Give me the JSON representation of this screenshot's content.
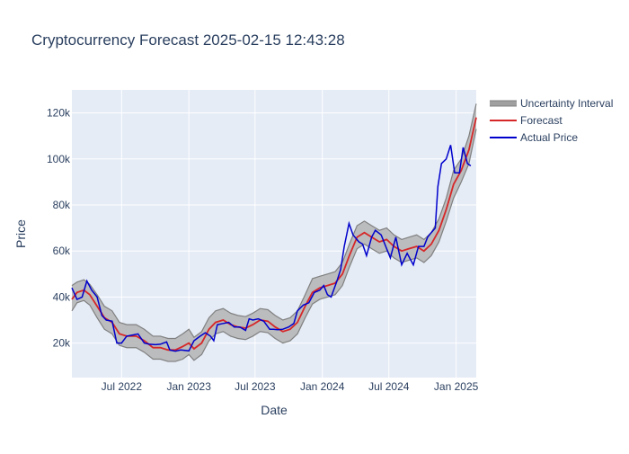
{
  "chart_data": {
    "type": "area",
    "title": "Cryptocurrency Forecast 2025-02-15 12:43:28",
    "xlabel": "Date",
    "ylabel": "Price",
    "x_range": [
      "2022-02-15",
      "2025-02-25"
    ],
    "ylim": [
      5000,
      130000
    ],
    "x_ticks": [
      {
        "date": "2022-07-01",
        "label": "Jul 2022"
      },
      {
        "date": "2023-01-01",
        "label": "Jan 2023"
      },
      {
        "date": "2023-07-01",
        "label": "Jul 2023"
      },
      {
        "date": "2024-01-01",
        "label": "Jan 2024"
      },
      {
        "date": "2024-07-01",
        "label": "Jul 2024"
      },
      {
        "date": "2025-01-01",
        "label": "Jan 2025"
      }
    ],
    "y_ticks": [
      {
        "value": 20000,
        "label": "20k"
      },
      {
        "value": 40000,
        "label": "40k"
      },
      {
        "value": 60000,
        "label": "60k"
      },
      {
        "value": 80000,
        "label": "80k"
      },
      {
        "value": 100000,
        "label": "100k"
      },
      {
        "value": 120000,
        "label": "120k"
      }
    ],
    "grid": true,
    "legend_position": "right",
    "legend": [
      "Uncertainty Interval",
      "Forecast",
      "Actual Price"
    ],
    "colors": {
      "plot_bg": "#e5ecf6",
      "grid": "#ffffff",
      "band_fill": "#b4b4b4",
      "band_line": "#808080",
      "forecast": "#d62728",
      "actual": "#0000cc",
      "text": "#2a3f5f"
    },
    "series": [
      {
        "name": "Forecast",
        "x": [
          "2022-02-15",
          "2022-03-01",
          "2022-03-20",
          "2022-04-05",
          "2022-04-25",
          "2022-05-15",
          "2022-06-05",
          "2022-06-25",
          "2022-07-15",
          "2022-08-10",
          "2022-09-01",
          "2022-09-25",
          "2022-10-15",
          "2022-11-05",
          "2022-11-25",
          "2022-12-15",
          "2023-01-01",
          "2023-01-15",
          "2023-02-05",
          "2023-02-25",
          "2023-03-15",
          "2023-04-05",
          "2023-04-25",
          "2023-05-15",
          "2023-06-05",
          "2023-06-25",
          "2023-07-15",
          "2023-08-05",
          "2023-08-25",
          "2023-09-15",
          "2023-10-05",
          "2023-10-25",
          "2023-11-15",
          "2023-12-05",
          "2023-12-25",
          "2024-01-15",
          "2024-02-05",
          "2024-02-25",
          "2024-03-15",
          "2024-04-05",
          "2024-04-25",
          "2024-05-15",
          "2024-06-05",
          "2024-06-25",
          "2024-07-15",
          "2024-08-05",
          "2024-08-25",
          "2024-09-15",
          "2024-10-05",
          "2024-10-25",
          "2024-11-15",
          "2024-12-05",
          "2024-12-25",
          "2025-01-15",
          "2025-02-05",
          "2025-02-25"
        ],
        "values": [
          39000,
          42000,
          43000,
          41000,
          36000,
          31000,
          29000,
          24000,
          23000,
          23000,
          21000,
          18000,
          18000,
          17000,
          17000,
          18500,
          20000,
          17500,
          20000,
          26000,
          29000,
          30000,
          28000,
          27000,
          26500,
          28000,
          30000,
          29500,
          27000,
          25000,
          26000,
          29000,
          36000,
          42000,
          44000,
          45000,
          46000,
          50000,
          58000,
          66000,
          68000,
          66000,
          64000,
          65000,
          62000,
          60000,
          61000,
          62000,
          60000,
          63000,
          69000,
          78000,
          89000,
          95000,
          104000,
          118000
        ]
      },
      {
        "name": "Uncertainty Interval",
        "x": [
          "2022-02-15",
          "2022-03-01",
          "2022-03-20",
          "2022-04-05",
          "2022-04-25",
          "2022-05-15",
          "2022-06-05",
          "2022-06-25",
          "2022-07-15",
          "2022-08-10",
          "2022-09-01",
          "2022-09-25",
          "2022-10-15",
          "2022-11-05",
          "2022-11-25",
          "2022-12-15",
          "2023-01-01",
          "2023-01-15",
          "2023-02-05",
          "2023-02-25",
          "2023-03-15",
          "2023-04-05",
          "2023-04-25",
          "2023-05-15",
          "2023-06-05",
          "2023-06-25",
          "2023-07-15",
          "2023-08-05",
          "2023-08-25",
          "2023-09-15",
          "2023-10-05",
          "2023-10-25",
          "2023-11-15",
          "2023-12-05",
          "2023-12-25",
          "2024-01-15",
          "2024-02-05",
          "2024-02-25",
          "2024-03-15",
          "2024-04-05",
          "2024-04-25",
          "2024-05-15",
          "2024-06-05",
          "2024-06-25",
          "2024-07-15",
          "2024-08-05",
          "2024-08-25",
          "2024-09-15",
          "2024-10-05",
          "2024-10-25",
          "2024-11-15",
          "2024-12-05",
          "2024-12-25",
          "2025-01-15",
          "2025-02-05",
          "2025-02-25"
        ],
        "upper": [
          45000,
          46500,
          47500,
          45500,
          41000,
          36000,
          34000,
          29000,
          28000,
          28000,
          26000,
          23000,
          23000,
          22000,
          22000,
          24000,
          26000,
          22500,
          25000,
          31000,
          34000,
          35000,
          33000,
          32000,
          31500,
          33000,
          35000,
          34500,
          32000,
          30000,
          31000,
          34000,
          41000,
          48000,
          49000,
          50000,
          51000,
          55000,
          63000,
          71000,
          73000,
          71000,
          69000,
          70000,
          67000,
          65000,
          66000,
          67000,
          65000,
          68000,
          74000,
          83000,
          95000,
          100000,
          110000,
          124000
        ],
        "lower": [
          34000,
          37500,
          38500,
          36500,
          31000,
          26000,
          24000,
          19000,
          18000,
          18000,
          16000,
          13000,
          13000,
          12000,
          12000,
          13000,
          15000,
          12500,
          15000,
          21000,
          24000,
          25000,
          23000,
          22000,
          21500,
          23000,
          25000,
          24500,
          22000,
          20000,
          21000,
          24000,
          31000,
          37000,
          39000,
          40000,
          41000,
          45000,
          53000,
          61000,
          63000,
          61000,
          59000,
          60000,
          57000,
          55000,
          56000,
          57000,
          55000,
          58000,
          64000,
          73000,
          83000,
          90000,
          98000,
          113000
        ]
      },
      {
        "name": "Actual Price",
        "x": [
          "2022-02-15",
          "2022-03-01",
          "2022-03-15",
          "2022-03-28",
          "2022-04-10",
          "2022-04-25",
          "2022-05-08",
          "2022-05-20",
          "2022-06-05",
          "2022-06-18",
          "2022-07-01",
          "2022-07-15",
          "2022-08-01",
          "2022-08-15",
          "2022-09-01",
          "2022-09-15",
          "2022-10-01",
          "2022-10-15",
          "2022-11-01",
          "2022-11-10",
          "2022-11-25",
          "2022-12-10",
          "2023-01-01",
          "2023-01-15",
          "2023-02-01",
          "2023-02-15",
          "2023-03-01",
          "2023-03-10",
          "2023-03-20",
          "2023-04-05",
          "2023-04-20",
          "2023-05-05",
          "2023-05-20",
          "2023-06-05",
          "2023-06-15",
          "2023-06-25",
          "2023-07-10",
          "2023-07-25",
          "2023-08-10",
          "2023-08-20",
          "2023-09-01",
          "2023-09-15",
          "2023-10-01",
          "2023-10-15",
          "2023-10-25",
          "2023-11-10",
          "2023-11-25",
          "2023-12-10",
          "2023-12-25",
          "2024-01-05",
          "2024-01-15",
          "2024-01-25",
          "2024-02-10",
          "2024-02-20",
          "2024-03-01",
          "2024-03-14",
          "2024-03-25",
          "2024-04-10",
          "2024-04-20",
          "2024-05-01",
          "2024-05-15",
          "2024-05-25",
          "2024-06-10",
          "2024-06-25",
          "2024-07-05",
          "2024-07-20",
          "2024-08-05",
          "2024-08-20",
          "2024-09-06",
          "2024-09-20",
          "2024-10-05",
          "2024-10-15",
          "2024-10-25",
          "2024-11-05",
          "2024-11-12",
          "2024-11-22",
          "2024-12-05",
          "2024-12-17",
          "2024-12-28",
          "2025-01-10",
          "2025-01-20",
          "2025-02-01",
          "2025-02-10"
        ],
        "values": [
          44000,
          39000,
          40000,
          47000,
          43000,
          40000,
          32000,
          30000,
          29500,
          20000,
          20000,
          23000,
          23500,
          24000,
          20000,
          19500,
          19300,
          19500,
          20500,
          17000,
          16500,
          17000,
          16600,
          21000,
          23000,
          24500,
          23000,
          21000,
          28000,
          28500,
          29000,
          27000,
          27000,
          25500,
          30500,
          30000,
          30500,
          29500,
          26000,
          26000,
          25800,
          26000,
          27000,
          28500,
          34000,
          36500,
          37500,
          42000,
          43000,
          45000,
          41000,
          40000,
          47000,
          52000,
          62000,
          72000,
          67000,
          64000,
          63000,
          58000,
          66000,
          69000,
          67000,
          61000,
          57000,
          66000,
          54000,
          59000,
          54000,
          62000,
          62000,
          66000,
          68000,
          70000,
          88000,
          98000,
          100000,
          106000,
          94000,
          94000,
          105000,
          98000,
          97000
        ]
      }
    ]
  }
}
